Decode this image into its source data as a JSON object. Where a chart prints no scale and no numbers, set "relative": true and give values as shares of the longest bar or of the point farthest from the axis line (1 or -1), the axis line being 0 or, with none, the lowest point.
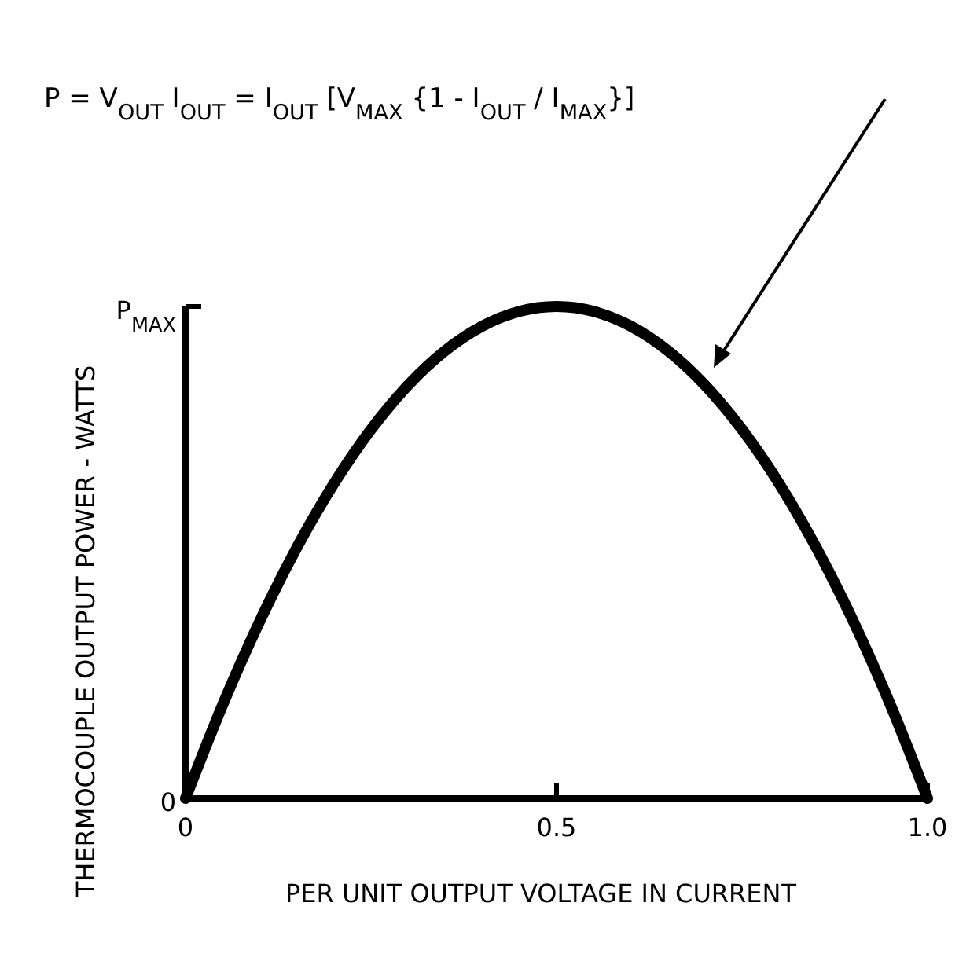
{
  "chart_data": {
    "type": "line",
    "xlabel": "PER UNIT OUTPUT  VOLTAGE IN CURRENT",
    "ylabel": "THERMOCOUPLE OUTPUT POWER - WATTS",
    "x": [
      0,
      0.05,
      0.1,
      0.15,
      0.2,
      0.25,
      0.3,
      0.35,
      0.4,
      0.45,
      0.5,
      0.55,
      0.6,
      0.65,
      0.7,
      0.75,
      0.8,
      0.85,
      0.9,
      0.95,
      1.0
    ],
    "series": [
      {
        "color": "#000000",
        "values": [
          0,
          0.19,
          0.36,
          0.51,
          0.64,
          0.75,
          0.84,
          0.91,
          0.96,
          0.99,
          1,
          0.99,
          0.96,
          0.91,
          0.84,
          0.75,
          0.64,
          0.51,
          0.36,
          0.19,
          0
        ]
      }
    ],
    "relative": true,
    "xlim": [
      0,
      1.0
    ],
    "xticks": [
      0,
      0.5,
      {
        "value": 1.0,
        "label": "1.0"
      }
    ],
    "annotations": [
      "P = V$_{OUT}$ I$_{OUT}$ = I$_{OUT}$  [V$_{MAX}$ {1 - I$_{OUT}$ / I$_{MAX}$}]",
      "P$_{MAX}$",
      "0"
    ],
    "line_style": "solid"
  }
}
